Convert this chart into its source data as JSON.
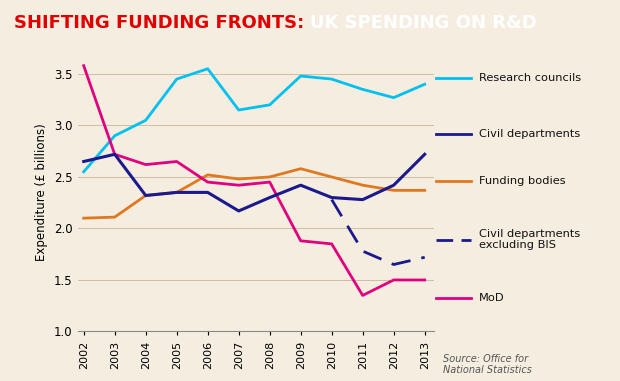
{
  "years": [
    2002,
    2003,
    2004,
    2005,
    2006,
    2007,
    2008,
    2009,
    2010,
    2011,
    2012,
    2013
  ],
  "research_councils": [
    2.55,
    2.9,
    3.05,
    3.45,
    3.55,
    3.15,
    3.2,
    3.48,
    3.45,
    3.35,
    3.27,
    3.4
  ],
  "civil_departments": [
    2.65,
    2.72,
    2.32,
    2.35,
    2.35,
    2.17,
    2.3,
    2.42,
    2.3,
    2.28,
    2.42,
    2.72
  ],
  "funding_bodies": [
    2.1,
    2.11,
    2.32,
    2.35,
    2.52,
    2.48,
    2.5,
    2.58,
    2.5,
    2.42,
    2.37,
    2.37
  ],
  "civil_dept_excl_bis": [
    null,
    null,
    null,
    null,
    null,
    null,
    null,
    null,
    2.28,
    1.78,
    1.65,
    1.72
  ],
  "mod": [
    3.58,
    2.72,
    2.62,
    2.65,
    2.45,
    2.42,
    2.45,
    1.88,
    1.85,
    1.35,
    1.5,
    1.5
  ],
  "colors": {
    "research_councils": "#00c0f0",
    "civil_departments": "#1a1a8c",
    "funding_bodies": "#e07820",
    "civil_dept_excl_bis": "#1a1a8c",
    "mod": "#e0007f"
  },
  "title_red": "SHIFTING FUNDING FRONTS: ",
  "title_white": "UK SPENDING ON R&D",
  "ylabel": "Expenditure (£ billions)",
  "ylim": [
    1.0,
    3.7
  ],
  "yticks": [
    1.0,
    1.5,
    2.0,
    2.5,
    3.0,
    3.5
  ],
  "bg_color": "#f5ede0",
  "title_bg": "#111111",
  "source_text": "Source: Office for\nNational Statistics",
  "legend_labels": {
    "research_councils": "Research councils",
    "civil_departments": "Civil departments",
    "funding_bodies": "Funding bodies",
    "civil_dept_excl_bis": "Civil departments\nexcluding BIS",
    "mod": "MoD"
  }
}
